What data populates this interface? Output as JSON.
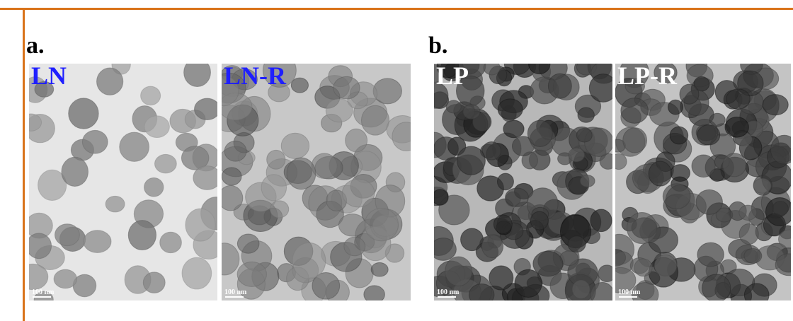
{
  "panels": [
    {
      "label": "a.",
      "images": [
        {
          "label": "LN",
          "scale": "100 nm"
        },
        {
          "label": "LN-R",
          "scale": "100 nm"
        }
      ]
    },
    {
      "label": "b.",
      "images": [
        {
          "label": "LP",
          "scale": "100 nm"
        },
        {
          "label": "LP-R",
          "scale": "100 nm"
        }
      ]
    }
  ]
}
